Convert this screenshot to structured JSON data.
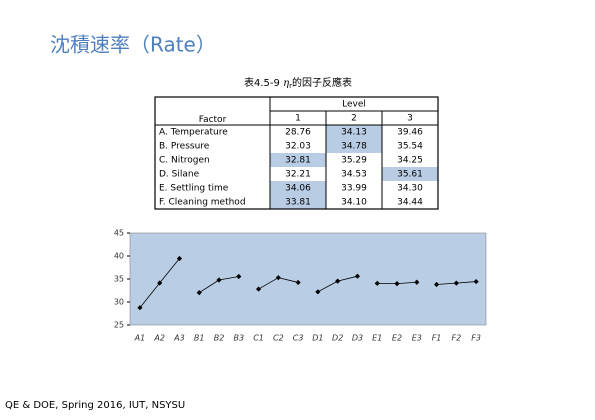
{
  "title": "沈積速率（Rate）",
  "caption": {
    "prefix": "表4.5-9",
    "symbol": "η",
    "subscript": "r",
    "suffix": "的因子反應表"
  },
  "table": {
    "level_header": "Level",
    "factor_header": "Factor",
    "columns": [
      "1",
      "2",
      "3"
    ],
    "rows": [
      {
        "factor": "A. Temperature",
        "cells": [
          "28.76",
          "34.13",
          "39.46"
        ],
        "highlight": 1
      },
      {
        "factor": "B. Pressure",
        "cells": [
          "32.03",
          "34.78",
          "35.54"
        ],
        "highlight": 1
      },
      {
        "factor": "C. Nitrogen",
        "cells": [
          "32.81",
          "35.29",
          "34.25"
        ],
        "highlight": 0
      },
      {
        "factor": "D. Silane",
        "cells": [
          "32.21",
          "34.53",
          "35.61"
        ],
        "highlight": 2
      },
      {
        "factor": "E. Settling time",
        "cells": [
          "34.06",
          "33.99",
          "34.30"
        ],
        "highlight": 0
      },
      {
        "factor": "F. Cleaning method",
        "cells": [
          "33.81",
          "34.10",
          "34.44"
        ],
        "highlight": 0
      }
    ]
  },
  "chart_data": {
    "type": "line",
    "categories": [
      "A1",
      "A2",
      "A3",
      "B1",
      "B2",
      "B3",
      "C1",
      "C2",
      "C3",
      "D1",
      "D2",
      "D3",
      "E1",
      "E2",
      "E3",
      "F1",
      "F2",
      "F3"
    ],
    "values": [
      28.76,
      34.13,
      39.46,
      32.03,
      34.78,
      35.54,
      32.81,
      35.29,
      34.25,
      32.21,
      34.53,
      35.61,
      34.06,
      33.99,
      34.3,
      33.81,
      34.1,
      34.44
    ],
    "color": "#000000",
    "ylim": [
      25,
      45
    ],
    "yticks": [
      25,
      30,
      35,
      40,
      45
    ]
  },
  "footer": "QE & DOE, Spring 2016, IUT, NSYSU"
}
